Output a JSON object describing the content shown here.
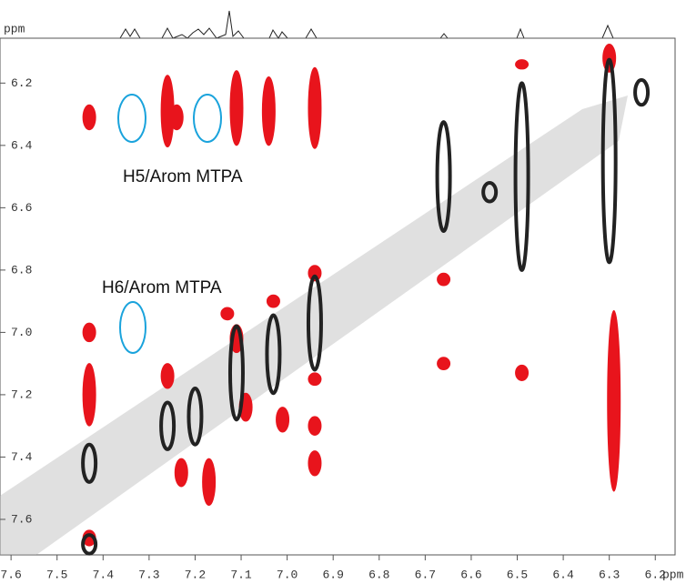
{
  "chart_data": {
    "type": "contour",
    "x_label": "ppm",
    "y_label": "ppm",
    "annotations": [
      "H5/Arom MTPA",
      "H6/Arom MTPA"
    ],
    "xlim": [
      7.624,
      6.157
    ],
    "ylim": [
      6.056,
      7.714
    ],
    "xticks": [
      7.6,
      7.5,
      7.4,
      7.3,
      7.2,
      7.1,
      {
        "value": 7,
        "label": "7.0"
      },
      6.9,
      6.8,
      6.7,
      6.6,
      6.5,
      6.4,
      6.3,
      6.2
    ],
    "yticks": [
      6.2,
      6.4,
      6.6,
      6.8,
      {
        "value": 7,
        "label": "7.0"
      },
      7.2,
      7.4,
      7.6
    ],
    "series": [
      {
        "color": "#e8141c",
        "x": [
          7.26,
          7.43,
          7.24,
          7.11,
          7.04,
          6.94,
          6.3,
          6.29,
          6.49,
          6.49,
          6.66,
          6.66,
          6.94,
          6.94,
          6.94,
          6.94,
          7.43,
          7.43,
          7.43,
          7.26,
          7.23,
          7.17,
          7.11,
          7.09,
          7.03,
          7.01,
          7.13
        ],
        "y": [
          6.29,
          6.31,
          6.31,
          6.28,
          6.29,
          6.28,
          6.12,
          7.22,
          7.13,
          6.14,
          7.1,
          6.83,
          6.81,
          7.15,
          7.3,
          7.42,
          7.0,
          7.2,
          7.66,
          7.14,
          7.45,
          7.48,
          7.02,
          7.24,
          6.9,
          7.28,
          6.94
        ],
        "ylen": [
          0.23,
          0.08,
          0.08,
          0.24,
          0.22,
          0.26,
          0.09,
          0.58,
          0.05,
          0.03,
          0.04,
          0.04,
          0.05,
          0.04,
          0.06,
          0.08,
          0.06,
          0.2,
          0.05,
          0.08,
          0.09,
          0.15,
          0.09,
          0.09,
          0.04,
          0.08,
          0.04
        ]
      },
      {
        "color": "#222222",
        "x": [
          6.66,
          6.49,
          6.3,
          6.23,
          7.43,
          7.26,
          7.2,
          7.11,
          7.03,
          6.94,
          7.43,
          6.56
        ],
        "y": [
          6.5,
          6.5,
          6.45,
          6.23,
          7.42,
          7.3,
          7.27,
          7.13,
          7.07,
          6.97,
          7.68,
          6.55
        ],
        "ylen": [
          0.35,
          0.6,
          0.65,
          0.08,
          0.12,
          0.15,
          0.18,
          0.3,
          0.25,
          0.3,
          0.06,
          0.06
        ]
      }
    ]
  }
}
